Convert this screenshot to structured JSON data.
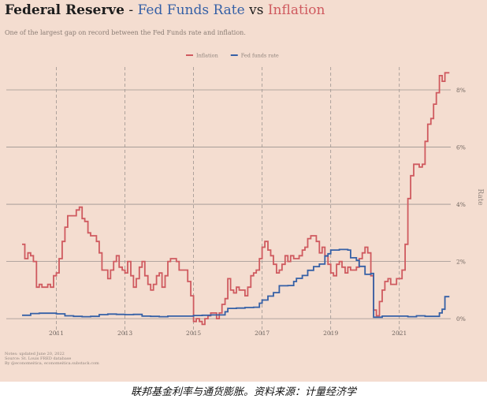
{
  "title": {
    "part1": "Federal Reserve",
    "sep1": " - ",
    "part2": "Fed Funds Rate",
    "sep2": " vs ",
    "part3": "Inflation"
  },
  "subtitle": "One of the largest gap on record between the Fed Funds rate and inflation.",
  "notes": [
    "Notes: updated June 20, 2022",
    "Source: St. Louis FRED database",
    "By @economeitica, economeitica.substack.com"
  ],
  "caption": "联邦基金利率与通货膨胀。资料来源：计量经济学",
  "colors": {
    "background": "#f4ddd0",
    "inflation": "#cf5a5f",
    "fed_funds": "#3560a6",
    "grid": "#9c9490"
  },
  "chart_data": {
    "type": "line",
    "ylabel": "Rate",
    "y_ticks": [
      0,
      2,
      4,
      6,
      8
    ],
    "y_tick_labels": [
      "0%",
      "2%",
      "4%",
      "6%",
      "8%"
    ],
    "x_ticks": [
      2011,
      2013,
      2015,
      2017,
      2019,
      2021
    ],
    "x_tick_labels": [
      "2011",
      "2013",
      "2015",
      "2017",
      "2019",
      "2021"
    ],
    "xlim": [
      2010.0,
      2022.5
    ],
    "ylim": [
      -0.3,
      8.8
    ],
    "grid": true,
    "legend_position": "top-center",
    "series": [
      {
        "name": "Inflation",
        "color": "#cf5a5f",
        "x": [
          2010.0,
          2010.08,
          2010.17,
          2010.25,
          2010.33,
          2010.42,
          2010.5,
          2010.58,
          2010.67,
          2010.75,
          2010.83,
          2010.92,
          2011.0,
          2011.08,
          2011.17,
          2011.25,
          2011.33,
          2011.42,
          2011.5,
          2011.58,
          2011.67,
          2011.75,
          2011.83,
          2011.92,
          2012.0,
          2012.08,
          2012.17,
          2012.25,
          2012.33,
          2012.42,
          2012.5,
          2012.58,
          2012.67,
          2012.75,
          2012.83,
          2012.92,
          2013.0,
          2013.08,
          2013.17,
          2013.25,
          2013.33,
          2013.42,
          2013.5,
          2013.58,
          2013.67,
          2013.75,
          2013.83,
          2013.92,
          2014.0,
          2014.08,
          2014.17,
          2014.25,
          2014.33,
          2014.42,
          2014.5,
          2014.58,
          2014.67,
          2014.75,
          2014.83,
          2014.92,
          2015.0,
          2015.08,
          2015.17,
          2015.25,
          2015.33,
          2015.42,
          2015.5,
          2015.58,
          2015.67,
          2015.75,
          2015.83,
          2015.92,
          2016.0,
          2016.08,
          2016.17,
          2016.25,
          2016.33,
          2016.42,
          2016.5,
          2016.58,
          2016.67,
          2016.75,
          2016.83,
          2016.92,
          2017.0,
          2017.08,
          2017.17,
          2017.25,
          2017.33,
          2017.42,
          2017.5,
          2017.58,
          2017.67,
          2017.75,
          2017.83,
          2017.92,
          2018.0,
          2018.08,
          2018.17,
          2018.25,
          2018.33,
          2018.42,
          2018.5,
          2018.58,
          2018.67,
          2018.75,
          2018.83,
          2018.92,
          2019.0,
          2019.08,
          2019.17,
          2019.25,
          2019.33,
          2019.42,
          2019.5,
          2019.58,
          2019.67,
          2019.75,
          2019.83,
          2019.92,
          2020.0,
          2020.08,
          2020.17,
          2020.25,
          2020.33,
          2020.42,
          2020.5,
          2020.58,
          2020.67,
          2020.75,
          2020.83,
          2020.92,
          2021.0,
          2021.08,
          2021.17,
          2021.25,
          2021.33,
          2021.42,
          2021.5,
          2021.58,
          2021.67,
          2021.75,
          2021.83,
          2021.92,
          2022.0,
          2022.08,
          2022.17,
          2022.25,
          2022.33,
          2022.42
        ],
        "values": [
          2.6,
          2.1,
          2.3,
          2.2,
          2.0,
          1.1,
          1.2,
          1.1,
          1.1,
          1.2,
          1.1,
          1.5,
          1.6,
          2.1,
          2.7,
          3.2,
          3.6,
          3.6,
          3.6,
          3.8,
          3.9,
          3.5,
          3.4,
          3.0,
          2.9,
          2.9,
          2.7,
          2.3,
          1.7,
          1.7,
          1.4,
          1.7,
          2.0,
          2.2,
          1.8,
          1.7,
          1.6,
          2.0,
          1.5,
          1.1,
          1.4,
          1.8,
          2.0,
          1.5,
          1.2,
          1.0,
          1.2,
          1.5,
          1.6,
          1.1,
          1.5,
          2.0,
          2.1,
          2.1,
          2.0,
          1.7,
          1.7,
          1.7,
          1.3,
          0.8,
          -0.1,
          0.0,
          -0.1,
          -0.2,
          0.0,
          0.1,
          0.2,
          0.2,
          0.0,
          0.2,
          0.5,
          0.7,
          1.4,
          1.0,
          0.9,
          1.1,
          1.0,
          1.0,
          0.8,
          1.1,
          1.5,
          1.6,
          1.7,
          2.1,
          2.5,
          2.7,
          2.4,
          2.2,
          1.9,
          1.6,
          1.7,
          1.9,
          2.2,
          2.0,
          2.2,
          2.1,
          2.1,
          2.2,
          2.4,
          2.5,
          2.8,
          2.9,
          2.9,
          2.7,
          2.3,
          2.5,
          2.2,
          1.9,
          1.6,
          1.5,
          1.9,
          2.0,
          1.8,
          1.6,
          1.8,
          1.7,
          1.7,
          1.8,
          2.1,
          2.3,
          2.5,
          2.3,
          1.5,
          0.3,
          0.1,
          0.6,
          1.0,
          1.3,
          1.4,
          1.2,
          1.2,
          1.4,
          1.4,
          1.7,
          2.6,
          4.2,
          5.0,
          5.4,
          5.4,
          5.3,
          5.4,
          6.2,
          6.8,
          7.0,
          7.5,
          7.9,
          8.5,
          8.3,
          8.6,
          8.6
        ]
      },
      {
        "name": "Fed funds rate",
        "color": "#3560a6",
        "x": [
          2010.0,
          2010.25,
          2010.5,
          2010.75,
          2011.0,
          2011.25,
          2011.5,
          2011.75,
          2012.0,
          2012.25,
          2012.5,
          2012.75,
          2013.0,
          2013.25,
          2013.5,
          2013.75,
          2014.0,
          2014.25,
          2014.5,
          2014.75,
          2015.0,
          2015.25,
          2015.5,
          2015.75,
          2015.92,
          2016.0,
          2016.25,
          2016.5,
          2016.75,
          2016.92,
          2017.0,
          2017.17,
          2017.33,
          2017.5,
          2017.75,
          2017.92,
          2018.0,
          2018.17,
          2018.33,
          2018.5,
          2018.67,
          2018.83,
          2018.92,
          2019.0,
          2019.25,
          2019.5,
          2019.58,
          2019.75,
          2019.83,
          2020.0,
          2020.17,
          2020.25,
          2020.5,
          2020.75,
          2021.0,
          2021.25,
          2021.5,
          2021.75,
          2022.0,
          2022.17,
          2022.25,
          2022.33,
          2022.42
        ],
        "values": [
          0.12,
          0.18,
          0.19,
          0.19,
          0.17,
          0.1,
          0.08,
          0.07,
          0.08,
          0.14,
          0.16,
          0.15,
          0.14,
          0.15,
          0.09,
          0.08,
          0.07,
          0.09,
          0.09,
          0.09,
          0.11,
          0.12,
          0.13,
          0.13,
          0.24,
          0.36,
          0.37,
          0.39,
          0.4,
          0.54,
          0.65,
          0.79,
          0.91,
          1.15,
          1.16,
          1.3,
          1.41,
          1.51,
          1.69,
          1.82,
          1.91,
          2.19,
          2.27,
          2.4,
          2.42,
          2.4,
          2.13,
          2.04,
          1.83,
          1.55,
          1.58,
          0.05,
          0.09,
          0.09,
          0.09,
          0.07,
          0.1,
          0.08,
          0.08,
          0.2,
          0.33,
          0.77,
          0.77
        ]
      }
    ]
  }
}
